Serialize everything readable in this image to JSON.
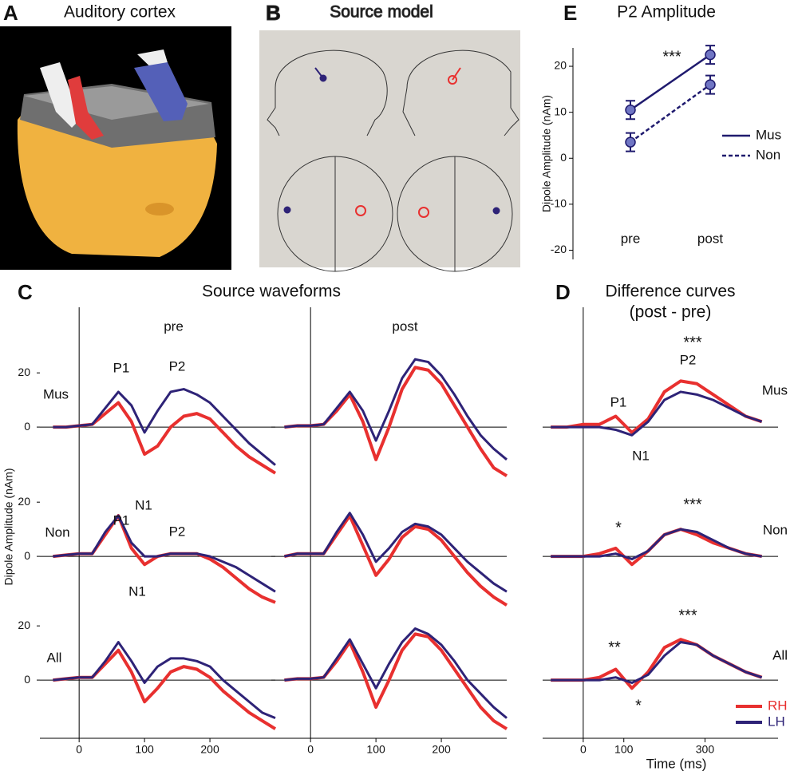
{
  "panels": {
    "A": {
      "letter": "A",
      "title": "Auditory cortex"
    },
    "B": {
      "letter": "B",
      "title": "Source model"
    }
  },
  "chart_data": [
    {
      "type": "line",
      "letter": "E",
      "title": "P2 Amplitude",
      "ylabel": "Dipole Amplitude  (nAm)",
      "categories": [
        "pre",
        "post"
      ],
      "ylim": [
        -22,
        24
      ],
      "yticks": [
        -20,
        -10,
        0,
        10,
        20
      ],
      "series": [
        {
          "name": "Mus",
          "color": "#1f1a6e",
          "dash": false,
          "values": [
            10.5,
            22.5
          ],
          "errors": [
            2,
            2
          ]
        },
        {
          "name": "Non",
          "color": "#1f1a6e",
          "dash": true,
          "values": [
            3.5,
            16
          ],
          "errors": [
            2,
            2
          ]
        }
      ],
      "annotations": [
        "***"
      ]
    },
    {
      "type": "line",
      "letter": "C",
      "title": "Source waveforms",
      "ylabel": "Dipole Amplitude  (nAm)",
      "columns": [
        "pre",
        "post"
      ],
      "rows": [
        "Mus",
        "Non",
        "All"
      ],
      "x": [
        -40,
        -20,
        0,
        20,
        40,
        60,
        80,
        100,
        120,
        140,
        160,
        180,
        200,
        220,
        240,
        260,
        280,
        300
      ],
      "xlim": [
        -60,
        300
      ],
      "xticks": [
        0,
        100,
        200
      ],
      "ylim": [
        -20,
        28
      ],
      "yticks": [
        0,
        20
      ],
      "subplots": [
        {
          "series": [
            {
              "color": "#e8302f",
              "values": [
                0,
                0,
                0.5,
                1,
                5,
                9,
                2,
                -10,
                -7,
                0,
                4,
                5,
                3,
                -2,
                -7,
                -11,
                -14,
                -17
              ]
            },
            {
              "color": "#2e2377",
              "values": [
                0,
                0,
                0.5,
                1,
                7,
                13,
                8,
                -2,
                6,
                13,
                14,
                12,
                9,
                4,
                -1,
                -6,
                -10,
                -14
              ]
            }
          ]
        },
        {
          "series": [
            {
              "color": "#e8302f",
              "values": [
                0,
                0.5,
                0.5,
                1,
                6,
                12,
                2,
                -12,
                0,
                14,
                22,
                21,
                16,
                8,
                0,
                -8,
                -15,
                -18
              ]
            },
            {
              "color": "#2e2377",
              "values": [
                0,
                0.5,
                0.5,
                1,
                7,
                13,
                6,
                -5,
                6,
                18,
                25,
                24,
                19,
                12,
                4,
                -3,
                -8,
                -12
              ]
            }
          ]
        },
        {
          "series": [
            {
              "color": "#e8302f",
              "values": [
                0,
                0.5,
                1,
                1,
                8,
                15,
                3,
                -3,
                0,
                1,
                1,
                1,
                -1,
                -4,
                -8,
                -12,
                -15,
                -17
              ]
            },
            {
              "color": "#2e2377",
              "values": [
                0,
                0.5,
                1,
                1,
                9,
                15,
                5,
                0,
                0,
                1,
                1,
                1,
                0,
                -2,
                -4,
                -7,
                -10,
                -13
              ]
            }
          ]
        },
        {
          "series": [
            {
              "color": "#e8302f",
              "values": [
                0,
                1,
                1,
                1,
                8,
                15,
                4,
                -7,
                -1,
                7,
                11,
                10,
                6,
                0,
                -6,
                -11,
                -15,
                -18
              ]
            },
            {
              "color": "#2e2377",
              "values": [
                0,
                1,
                1,
                1,
                9,
                16,
                8,
                -2,
                3,
                9,
                12,
                11,
                8,
                3,
                -2,
                -6,
                -10,
                -13
              ]
            }
          ]
        },
        {
          "series": [
            {
              "color": "#e8302f",
              "values": [
                0,
                0.5,
                1,
                1,
                6,
                11,
                3,
                -8,
                -3,
                3,
                5,
                4,
                1,
                -4,
                -8,
                -12,
                -15,
                -18
              ]
            },
            {
              "color": "#2e2377",
              "values": [
                0,
                0.5,
                1,
                1,
                7,
                14,
                7,
                -1,
                5,
                8,
                8,
                7,
                5,
                0,
                -4,
                -8,
                -12,
                -14
              ]
            }
          ]
        },
        {
          "series": [
            {
              "color": "#e8302f",
              "values": [
                0,
                0.5,
                0.5,
                1,
                7,
                14,
                3,
                -10,
                0,
                11,
                17,
                16,
                11,
                4,
                -3,
                -10,
                -15,
                -18
              ]
            },
            {
              "color": "#2e2377",
              "values": [
                0,
                0.5,
                0.5,
                1,
                8,
                15,
                6,
                -3,
                6,
                14,
                19,
                17,
                13,
                7,
                0,
                -5,
                -10,
                -14
              ]
            }
          ]
        }
      ],
      "annotations": [
        "P1",
        "P2",
        "N1",
        "P1",
        "P2",
        "N1"
      ]
    },
    {
      "type": "line",
      "letter": "D",
      "title": "Difference curves",
      "subtitle": "(post - pre)",
      "xlabel": "Time (ms)",
      "rows": [
        "Mus",
        "Non",
        "All"
      ],
      "x": [
        -80,
        -40,
        0,
        40,
        80,
        120,
        160,
        200,
        240,
        280,
        320,
        360,
        400,
        440
      ],
      "xlim": [
        -100,
        480
      ],
      "xticks": [
        0,
        100,
        300
      ],
      "ylim": [
        -20,
        28
      ],
      "legend": [
        {
          "name": "RH",
          "color": "#e8302f"
        },
        {
          "name": "LH",
          "color": "#2e2377"
        }
      ],
      "subplots": [
        {
          "series": [
            {
              "color": "#e8302f",
              "values": [
                0,
                0,
                1,
                1,
                4,
                -2,
                3,
                13,
                17,
                16,
                12,
                8,
                4,
                2
              ]
            },
            {
              "color": "#2e2377",
              "values": [
                0,
                0,
                0,
                0,
                -1,
                -3,
                2,
                10,
                13,
                12,
                10,
                7,
                4,
                2
              ]
            }
          ]
        },
        {
          "series": [
            {
              "color": "#e8302f",
              "values": [
                0,
                0,
                0,
                1,
                3,
                -3,
                2,
                8,
                10,
                8,
                5,
                3,
                1,
                0
              ]
            },
            {
              "color": "#2e2377",
              "values": [
                0,
                0,
                0,
                0,
                1,
                -1,
                2,
                8,
                10,
                9,
                6,
                3,
                1,
                0
              ]
            }
          ]
        },
        {
          "series": [
            {
              "color": "#e8302f",
              "values": [
                0,
                0,
                0,
                1,
                4,
                -3,
                3,
                12,
                15,
                13,
                9,
                6,
                3,
                1
              ]
            },
            {
              "color": "#2e2377",
              "values": [
                0,
                0,
                0,
                0,
                1,
                -1,
                2,
                9,
                14,
                13,
                9,
                6,
                3,
                1
              ]
            }
          ]
        }
      ],
      "annotations": [
        "***",
        "P2",
        "P1",
        "N1",
        "*",
        "***",
        "**",
        "***",
        "*"
      ]
    }
  ]
}
